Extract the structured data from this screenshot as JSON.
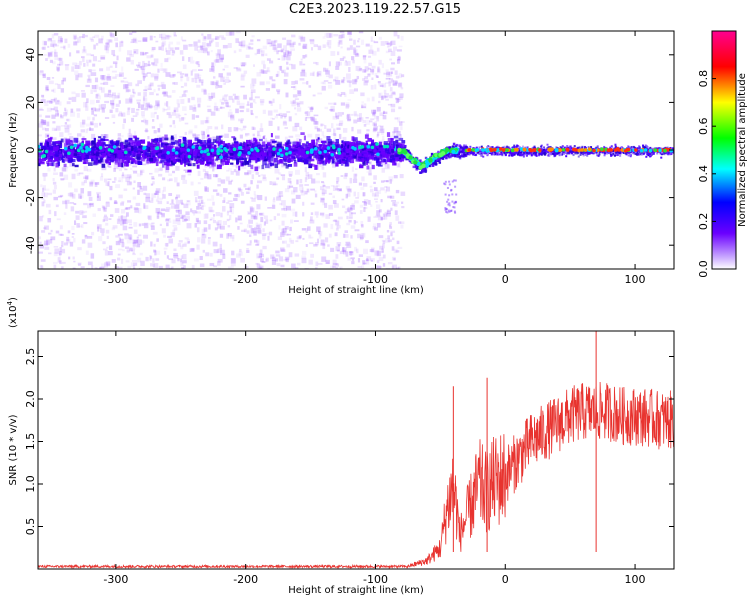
{
  "title": "C2E3.2023.119.22.57.G15",
  "chart_data": [
    {
      "type": "heatmap",
      "xlabel": "Height of straight line (km)",
      "ylabel": "Frequency (Hz)",
      "xlim": [
        -360,
        130
      ],
      "ylim": [
        -50,
        50
      ],
      "xticks": [
        -300,
        -200,
        -100,
        0,
        100
      ],
      "yticks": [
        -40,
        -20,
        0,
        20,
        40
      ],
      "colorbar": {
        "label": "Normalized spectral amplitude",
        "range": [
          0,
          1
        ],
        "ticks": [
          0.0,
          0.2,
          0.4,
          0.6,
          0.8
        ],
        "colormap": "rainbow (white-lavender -> violet -> blue -> cyan -> green -> yellow -> red -> magenta)"
      },
      "features": [
        {
          "x_range": [
            -360,
            -80
          ],
          "description": "broad diffuse violet scatter across full frequency band, dense core near 0 Hz (about ±10 Hz)"
        },
        {
          "x_range": [
            -80,
            -35
          ],
          "description": "signal dips to about -7 Hz near -65 km (green/cyan), then returns to 0"
        },
        {
          "x_range": [
            -35,
            130
          ],
          "description": "narrow strong line at ~0 Hz with red/orange peaks"
        }
      ]
    },
    {
      "type": "line",
      "xlabel": "Height of straight line (km)",
      "ylabel": "SNR (10 * v/v)",
      "y_multiplier": "(x10^4)",
      "xlim": [
        -360,
        130
      ],
      "ylim": [
        0,
        2.8
      ],
      "xticks": [
        -300,
        -200,
        -100,
        0,
        100
      ],
      "yticks": [
        0.5,
        1.0,
        1.5,
        2.0,
        2.5
      ],
      "color": "#e8332f",
      "series": [
        {
          "x": [
            -360,
            -300,
            -200,
            -100,
            -75,
            -60,
            -50,
            -45,
            -40,
            -35,
            -30,
            -25,
            -20,
            -15,
            -10,
            -5,
            0,
            10,
            20,
            30,
            40,
            50,
            60,
            70,
            80,
            90,
            100,
            110,
            120,
            130
          ],
          "y": [
            0.03,
            0.03,
            0.03,
            0.03,
            0.03,
            0.1,
            0.25,
            0.7,
            1.0,
            0.4,
            0.6,
            0.8,
            1.0,
            0.9,
            1.0,
            1.05,
            1.1,
            1.3,
            1.5,
            1.6,
            1.7,
            1.8,
            1.85,
            1.85,
            1.85,
            1.8,
            1.8,
            1.78,
            1.75,
            1.75
          ]
        }
      ],
      "annotations": [
        {
          "x": -40,
          "y": 2.15,
          "note": "spike"
        },
        {
          "x": -14,
          "y": 2.25,
          "note": "spike"
        },
        {
          "x": 70,
          "y": 2.9,
          "note": "peak spike"
        }
      ]
    }
  ]
}
